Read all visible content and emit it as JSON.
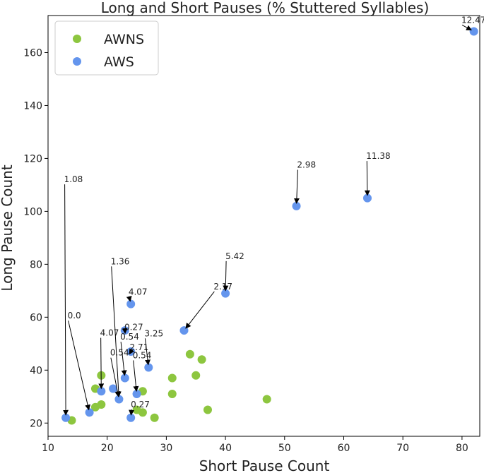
{
  "chart_data": {
    "type": "scatter",
    "title": "Long and Short Pauses (% Stuttered Syllables)",
    "xlabel": "Short Pause Count",
    "ylabel": "Long Pause Count",
    "xlim": [
      10,
      83
    ],
    "ylim": [
      15,
      174
    ],
    "xticks": [
      10,
      20,
      30,
      40,
      50,
      60,
      70,
      80
    ],
    "yticks": [
      20,
      40,
      60,
      80,
      100,
      120,
      140,
      160
    ],
    "grid": false,
    "legend": {
      "placement": "top-left"
    },
    "series": [
      {
        "name": "AWNS",
        "color": "#8dc63f",
        "points": [
          {
            "x": 14,
            "y": 21
          },
          {
            "x": 18,
            "y": 26
          },
          {
            "x": 18,
            "y": 33
          },
          {
            "x": 19,
            "y": 27
          },
          {
            "x": 19,
            "y": 38
          },
          {
            "x": 25,
            "y": 25
          },
          {
            "x": 26,
            "y": 24
          },
          {
            "x": 26,
            "y": 32
          },
          {
            "x": 28,
            "y": 22
          },
          {
            "x": 31,
            "y": 31
          },
          {
            "x": 31,
            "y": 37
          },
          {
            "x": 34,
            "y": 46
          },
          {
            "x": 35,
            "y": 38
          },
          {
            "x": 36,
            "y": 44
          },
          {
            "x": 37,
            "y": 25
          },
          {
            "x": 47,
            "y": 29
          }
        ]
      },
      {
        "name": "AWS",
        "color": "#6495ed",
        "points": [
          {
            "x": 13,
            "y": 22
          },
          {
            "x": 17,
            "y": 24
          },
          {
            "x": 19,
            "y": 32
          },
          {
            "x": 21,
            "y": 33
          },
          {
            "x": 22,
            "y": 29
          },
          {
            "x": 23,
            "y": 37
          },
          {
            "x": 23,
            "y": 55
          },
          {
            "x": 24,
            "y": 65
          },
          {
            "x": 24,
            "y": 47
          },
          {
            "x": 24,
            "y": 22
          },
          {
            "x": 25,
            "y": 31
          },
          {
            "x": 27,
            "y": 41
          },
          {
            "x": 33,
            "y": 55
          },
          {
            "x": 40,
            "y": 69
          },
          {
            "x": 52,
            "y": 102
          },
          {
            "x": 64,
            "y": 105
          },
          {
            "x": 82,
            "y": 168
          }
        ]
      }
    ],
    "annotations": [
      {
        "text": "1.08",
        "point": [
          13,
          22
        ],
        "text_at": [
          12.7,
          111
        ]
      },
      {
        "text": "0.0",
        "point": [
          17,
          24
        ],
        "text_at": [
          13.3,
          59.5
        ]
      },
      {
        "text": "4.07",
        "point": [
          19,
          32
        ],
        "text_at": [
          18.8,
          53
        ]
      },
      {
        "text": "0.54",
        "point": [
          22,
          29
        ],
        "text_at": [
          20.5,
          45.5
        ]
      },
      {
        "text": "1.36",
        "point": [
          22,
          29
        ],
        "text_at": [
          20.6,
          80
        ]
      },
      {
        "text": "0.27",
        "point": [
          23,
          55
        ],
        "text_at": [
          22.9,
          55.2
        ]
      },
      {
        "text": "4.07",
        "point": [
          24,
          65
        ],
        "text_at": [
          23.6,
          68.5
        ]
      },
      {
        "text": "2.71",
        "point": [
          24,
          47
        ],
        "text_at": [
          23.8,
          47.5
        ]
      },
      {
        "text": "0.54",
        "point": [
          23,
          37
        ],
        "text_at": [
          22.2,
          51.5
        ]
      },
      {
        "text": "0.54",
        "point": [
          25,
          31
        ],
        "text_at": [
          24.3,
          44.5
        ]
      },
      {
        "text": "3.25",
        "point": [
          27,
          41
        ],
        "text_at": [
          26.3,
          52.8
        ]
      },
      {
        "text": "0.27",
        "point": [
          24,
          22
        ],
        "text_at": [
          24,
          26
        ]
      },
      {
        "text": "2.17",
        "point": [
          33,
          55
        ],
        "text_at": [
          38,
          70.5
        ]
      },
      {
        "text": "5.42",
        "point": [
          40,
          69
        ],
        "text_at": [
          40,
          82
        ]
      },
      {
        "text": "2.98",
        "point": [
          52,
          102
        ],
        "text_at": [
          52.1,
          116.5
        ]
      },
      {
        "text": "11.38",
        "point": [
          64,
          105
        ],
        "text_at": [
          63.8,
          119.8
        ]
      },
      {
        "text": "12.47",
        "point": [
          82,
          168
        ],
        "text_at": [
          79.9,
          171.2
        ]
      }
    ]
  }
}
